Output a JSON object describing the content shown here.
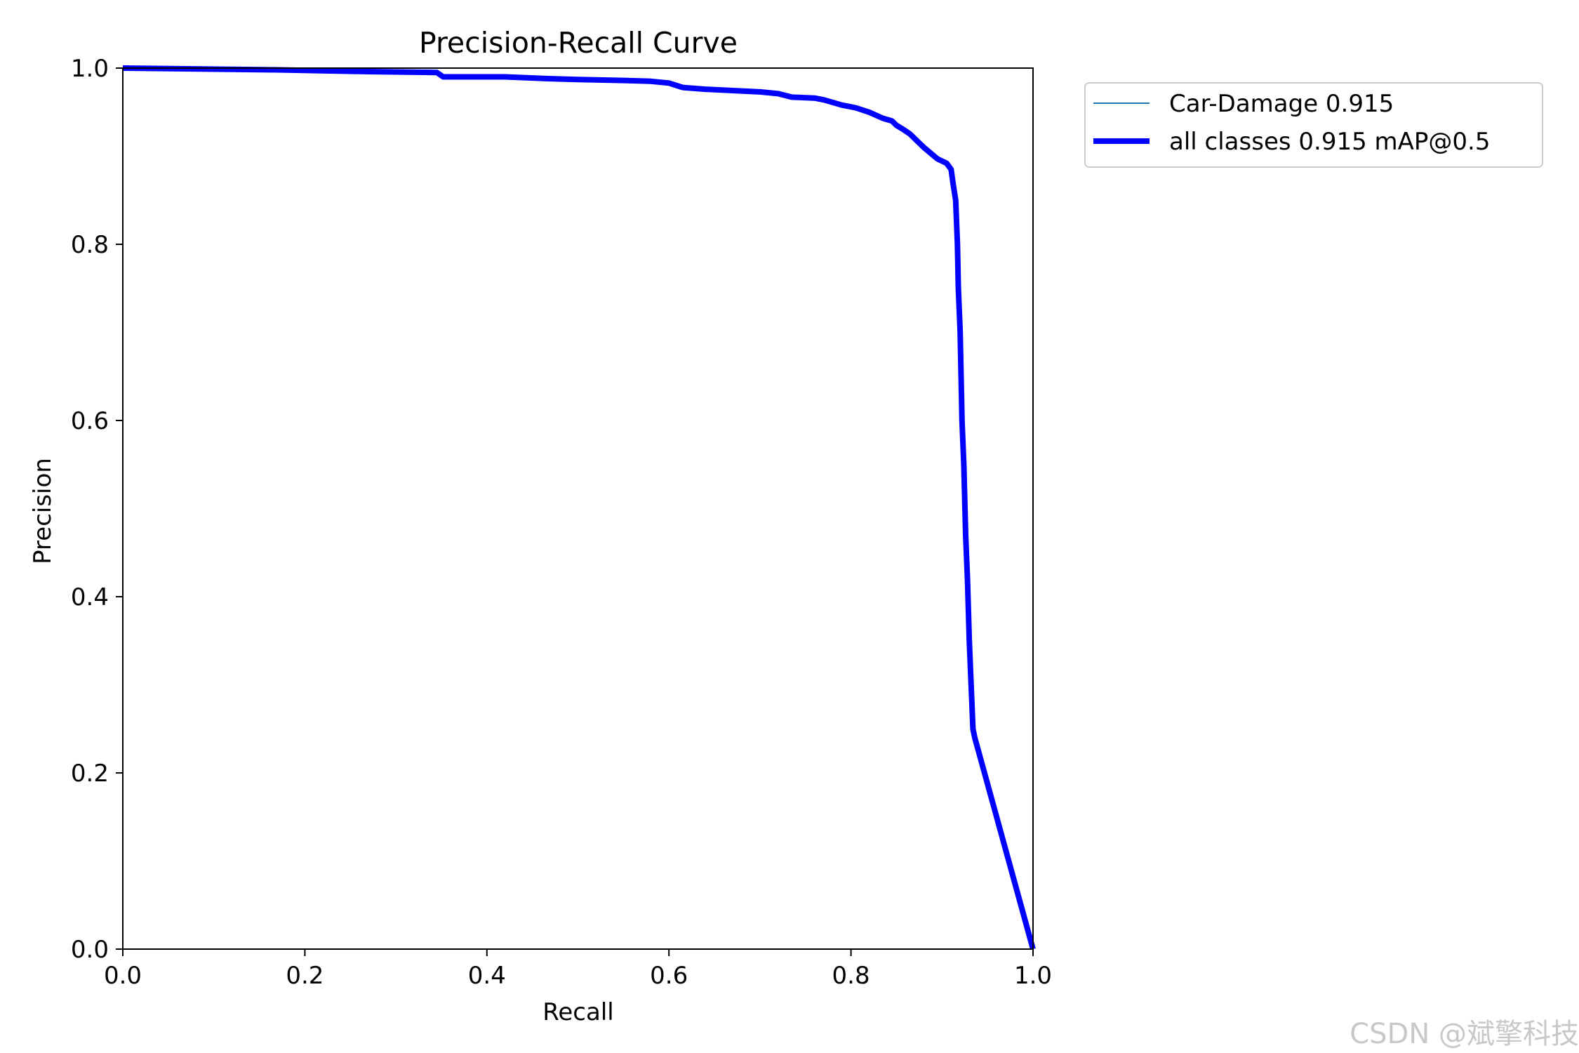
{
  "chart_data": {
    "type": "line",
    "title": "Precision-Recall Curve",
    "xlabel": "Recall",
    "ylabel": "Precision",
    "xlim": [
      0,
      1
    ],
    "ylim": [
      0,
      1
    ],
    "xticks": [
      "0.0",
      "0.2",
      "0.4",
      "0.6",
      "0.8",
      "1.0"
    ],
    "yticks": [
      "0.0",
      "0.2",
      "0.4",
      "0.6",
      "0.8",
      "1.0"
    ],
    "grid": false,
    "legend_position": "outside-upper-right",
    "series": [
      {
        "name": "Car-Damage 0.915",
        "color": "#1f77b4",
        "x": [
          0.0,
          0.17,
          0.27,
          0.345,
          0.352,
          0.42,
          0.47,
          0.5,
          0.55,
          0.58,
          0.6,
          0.615,
          0.64,
          0.7,
          0.72,
          0.735,
          0.76,
          0.77,
          0.79,
          0.805,
          0.82,
          0.835,
          0.845,
          0.85,
          0.858,
          0.865,
          0.88,
          0.895,
          0.905,
          0.91,
          0.912,
          0.915,
          0.917,
          0.918,
          0.92,
          0.922,
          0.924,
          0.926,
          0.928,
          0.93,
          0.932,
          0.934,
          0.936,
          1.0
        ],
        "y": [
          1.0,
          0.998,
          0.996,
          0.995,
          0.99,
          0.99,
          0.988,
          0.987,
          0.986,
          0.985,
          0.983,
          0.978,
          0.976,
          0.973,
          0.971,
          0.967,
          0.966,
          0.964,
          0.958,
          0.955,
          0.95,
          0.943,
          0.94,
          0.935,
          0.93,
          0.925,
          0.91,
          0.897,
          0.892,
          0.885,
          0.87,
          0.85,
          0.8,
          0.75,
          0.7,
          0.6,
          0.55,
          0.47,
          0.42,
          0.35,
          0.3,
          0.25,
          0.24,
          0.0
        ]
      },
      {
        "name": "all classes 0.915 mAP@0.5",
        "color": "#0000ff",
        "x": [
          0.0,
          0.17,
          0.27,
          0.345,
          0.352,
          0.42,
          0.47,
          0.5,
          0.55,
          0.58,
          0.6,
          0.615,
          0.64,
          0.7,
          0.72,
          0.735,
          0.76,
          0.77,
          0.79,
          0.805,
          0.82,
          0.835,
          0.845,
          0.85,
          0.858,
          0.865,
          0.88,
          0.895,
          0.905,
          0.91,
          0.912,
          0.915,
          0.917,
          0.918,
          0.92,
          0.922,
          0.924,
          0.926,
          0.928,
          0.93,
          0.932,
          0.934,
          0.936,
          1.0
        ],
        "y": [
          1.0,
          0.998,
          0.996,
          0.995,
          0.99,
          0.99,
          0.988,
          0.987,
          0.986,
          0.985,
          0.983,
          0.978,
          0.976,
          0.973,
          0.971,
          0.967,
          0.966,
          0.964,
          0.958,
          0.955,
          0.95,
          0.943,
          0.94,
          0.935,
          0.93,
          0.925,
          0.91,
          0.897,
          0.892,
          0.885,
          0.87,
          0.85,
          0.8,
          0.75,
          0.7,
          0.6,
          0.55,
          0.47,
          0.42,
          0.35,
          0.3,
          0.25,
          0.24,
          0.0
        ]
      }
    ]
  },
  "watermark": "CSDN @斌擎科技"
}
